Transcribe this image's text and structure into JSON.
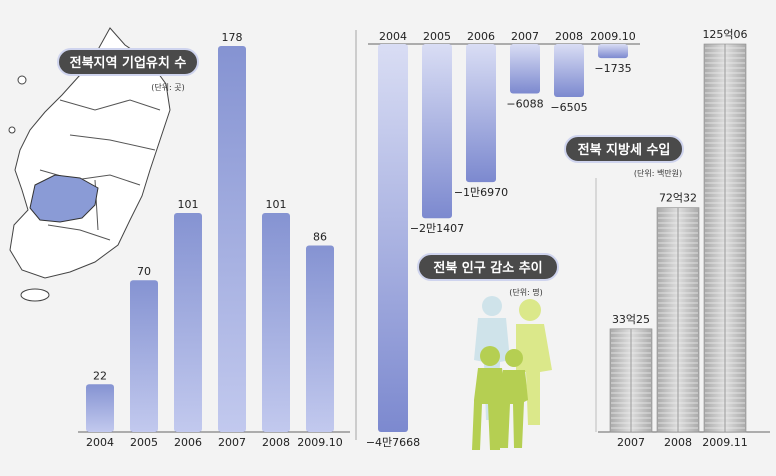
{
  "panel1": {
    "title": "전북지역 기업유치 수",
    "unit": "(단위: 곳)"
  },
  "panel2": {
    "title": "전북 인구 감소 추이",
    "unit": "(단위: 명)"
  },
  "panel3": {
    "title": "전북 지방세 수입",
    "unit": "(단위: 백만원)"
  },
  "colors": {
    "bar": "#8a97d4",
    "bar_light": "#c5ccef",
    "bar_dark": "#6f7cc2",
    "map_highlight": "#8a9bd6",
    "title_bg": "#4a4a4a",
    "figure_green": "#b5cf52",
    "figure_lightgreen": "#dbe88a",
    "figure_lightblue": "#cfe3ea",
    "money": "#bfbfbf"
  },
  "chart_data": [
    {
      "type": "bar",
      "title": "전북지역 기업유치 수",
      "categories": [
        "2004",
        "2005",
        "2006",
        "2007",
        "2008",
        "2009.10"
      ],
      "values": [
        22,
        70,
        101,
        178,
        101,
        86
      ],
      "labels": [
        "22",
        "70",
        "101",
        "178",
        "101",
        "86"
      ],
      "ylim": [
        0,
        178
      ]
    },
    {
      "type": "bar",
      "title": "전북 인구 감소 추이",
      "categories": [
        "2004",
        "2005",
        "2006",
        "2007",
        "2008",
        "2009.10"
      ],
      "values": [
        -47668,
        -21407,
        -16970,
        -6088,
        -6505,
        -1735
      ],
      "labels": [
        "−4만7668",
        "−2만1407",
        "−1만6970",
        "−6088",
        "−6505",
        "−1735"
      ],
      "ylim": [
        -47668,
        0
      ]
    },
    {
      "type": "bar",
      "title": "전북 지방세 수입",
      "categories": [
        "2007",
        "2008",
        "2009.11"
      ],
      "values": [
        3325,
        7232,
        12506
      ],
      "labels": [
        "33억25",
        "72억32",
        "125억06"
      ],
      "ylim": [
        0,
        12506
      ]
    }
  ]
}
